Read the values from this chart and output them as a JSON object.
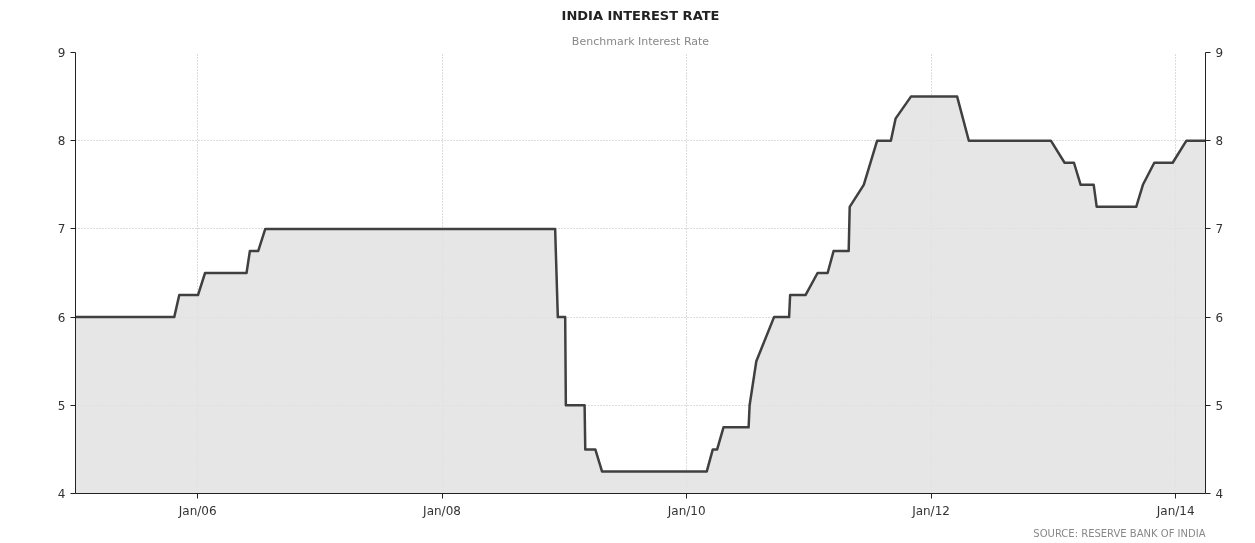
{
  "chart_data": {
    "type": "area",
    "title": "INDIA INTEREST RATE",
    "subtitle": "Benchmark Interest Rate",
    "annotations": [
      "SOURCE: RESERVE BANK OF INDIA"
    ],
    "x": [
      "2005-01-01",
      "2005-10-23",
      "2005-11-07",
      "2006-01-02",
      "2006-01-23",
      "2006-05-27",
      "2006-06-06",
      "2006-07-01",
      "2006-07-22",
      "2008-12-04",
      "2008-12-12",
      "2009-01-03",
      "2009-01-05",
      "2009-03-02",
      "2009-03-04",
      "2009-04-03",
      "2009-04-23",
      "2010-03-02",
      "2010-03-20",
      "2010-04-02",
      "2010-04-21",
      "2010-07-05",
      "2010-07-08",
      "2010-07-28",
      "2010-09-19",
      "2010-11-03",
      "2010-11-06",
      "2010-12-22",
      "2011-01-27",
      "2011-02-26",
      "2011-03-16",
      "2011-04-30",
      "2011-05-03",
      "2011-06-14",
      "2011-07-24",
      "2011-09-03",
      "2011-09-17",
      "2011-11-02",
      "2012-03-19",
      "2012-04-23",
      "2012-12-24",
      "2013-02-03",
      "2013-03-03",
      "2013-03-23",
      "2013-05-01",
      "2013-05-10",
      "2013-09-05",
      "2013-09-25",
      "2013-10-29",
      "2013-12-23",
      "2014-02-02",
      "2014-03-31"
    ],
    "series": [
      {
        "color": "#404040",
        "values": [
          6,
          6,
          6.25,
          6.25,
          6.5,
          6.5,
          6.75,
          6.75,
          7,
          7,
          6,
          6,
          5,
          5,
          4.5,
          4.5,
          4.25,
          4.25,
          4.5,
          4.5,
          4.75,
          4.75,
          5,
          5.5,
          6,
          6,
          6.25,
          6.25,
          6.5,
          6.5,
          6.75,
          6.75,
          7.25,
          7.5,
          8,
          8,
          8.25,
          8.5,
          8.5,
          8,
          8,
          7.75,
          7.75,
          7.5,
          7.5,
          7.25,
          7.25,
          7.5,
          7.75,
          7.75,
          8,
          8
        ]
      }
    ],
    "xlim": [
      "2005-01-01",
      "2014-03-31"
    ],
    "xticks": [
      {
        "value": "2006-01",
        "label": "Jan/06"
      },
      {
        "value": "2008-01",
        "label": "Jan/08"
      },
      {
        "value": "2010-01",
        "label": "Jan/10"
      },
      {
        "value": "2012-01",
        "label": "Jan/12"
      },
      {
        "value": "2014-01",
        "label": "Jan/14"
      }
    ],
    "ylim": [
      4,
      9
    ],
    "yticks": [
      4,
      5,
      6,
      7,
      8,
      9
    ],
    "y2lim": [
      4,
      9
    ],
    "y2ticks": [
      4,
      5,
      6,
      7,
      8,
      9
    ],
    "grid": true
  }
}
